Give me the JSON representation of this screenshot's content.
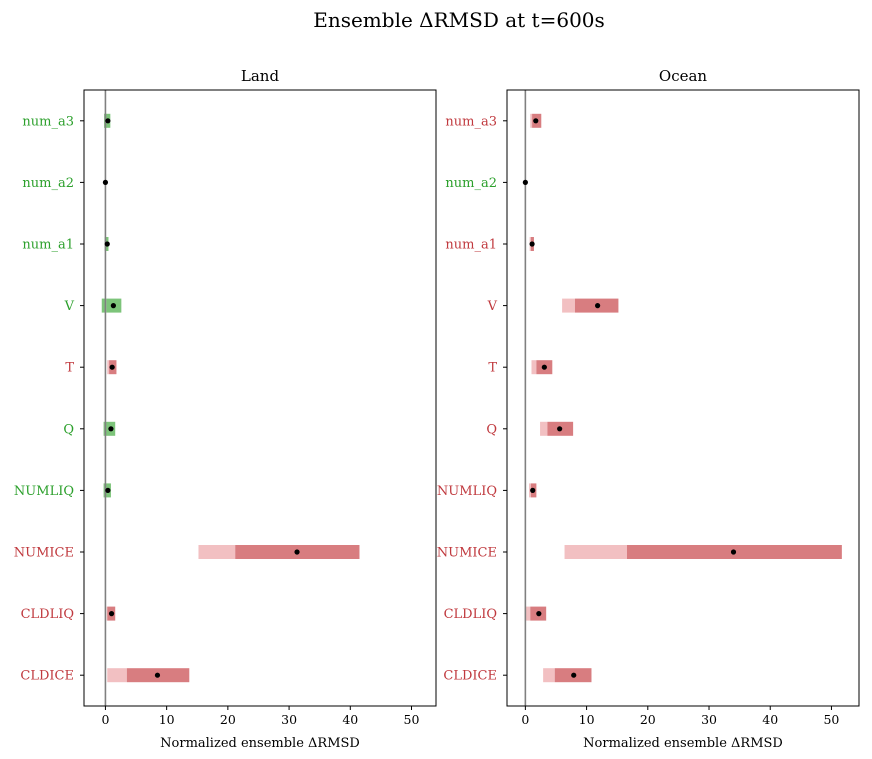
{
  "chart_data": {
    "type": "bar",
    "title": "Ensemble ΔRMSD at t=600s",
    "colors": {
      "green_label": "#2ca02c",
      "red_label": "#c0393e",
      "green_bar": "#7dc47a",
      "red_bar": "#d87d80",
      "red_bar_light": "#f2c0c2",
      "zero_line": "#808080",
      "dot": "#000000"
    },
    "panels": [
      {
        "title": "Land",
        "xlabel": "Normalized ensemble ΔRMSD",
        "xlim": [
          -3.5,
          54
        ],
        "xticks": [
          0,
          10,
          20,
          30,
          40,
          50
        ],
        "categories": [
          "num_a3",
          "num_a2",
          "num_a1",
          "V",
          "T",
          "Q",
          "NUMLIQ",
          "NUMICE",
          "CLDLIQ",
          "CLDICE"
        ],
        "label_colors": [
          "green",
          "green",
          "green",
          "green",
          "red",
          "green",
          "green",
          "red",
          "red",
          "red"
        ],
        "light_range": [
          [
            -0.2,
            0.2
          ],
          [
            0,
            0
          ],
          [
            -0.1,
            0.1
          ],
          [
            -0.6,
            0.2
          ],
          [
            0.3,
            0.6
          ],
          [
            -0.3,
            -0.1
          ],
          [
            -0.3,
            -0.1
          ],
          [
            15.2,
            21.2
          ],
          [
            0.2,
            0.3
          ],
          [
            0.3,
            3.5
          ]
        ],
        "dark_range": [
          [
            -0.2,
            0.8
          ],
          [
            0,
            0
          ],
          [
            -0.1,
            0.5
          ],
          [
            0.2,
            2.6
          ],
          [
            0.6,
            1.8
          ],
          [
            -0.1,
            1.6
          ],
          [
            -0.1,
            0.9
          ],
          [
            21.2,
            41.5
          ],
          [
            0.3,
            1.6
          ],
          [
            3.5,
            13.7
          ]
        ],
        "values": [
          0.4,
          0.0,
          0.3,
          1.3,
          1.1,
          0.9,
          0.4,
          31.3,
          1.0,
          8.5
        ]
      },
      {
        "title": "Ocean",
        "xlabel": "Normalized ensemble ΔRMSD",
        "xlim": [
          -3,
          54.5
        ],
        "xticks": [
          0,
          10,
          20,
          30,
          40,
          50
        ],
        "categories": [
          "num_a3",
          "num_a2",
          "num_a1",
          "V",
          "T",
          "Q",
          "NUMLIQ",
          "NUMICE",
          "CLDLIQ",
          "CLDICE"
        ],
        "label_colors": [
          "red",
          "green",
          "red",
          "red",
          "red",
          "red",
          "red",
          "red",
          "red",
          "red"
        ],
        "light_range": [
          [
            0.8,
            1.1
          ],
          [
            0,
            0
          ],
          [
            0.7,
            0.9
          ],
          [
            6.0,
            8.1
          ],
          [
            1.0,
            1.8
          ],
          [
            2.4,
            3.6
          ],
          [
            0.6,
            0.9
          ],
          [
            6.4,
            16.6
          ],
          [
            -0.1,
            0.8
          ],
          [
            2.9,
            4.8
          ]
        ],
        "dark_range": [
          [
            1.1,
            2.6
          ],
          [
            0,
            0
          ],
          [
            0.9,
            1.4
          ],
          [
            8.1,
            15.2
          ],
          [
            1.8,
            4.4
          ],
          [
            3.6,
            7.8
          ],
          [
            0.9,
            1.8
          ],
          [
            16.6,
            51.7
          ],
          [
            0.8,
            3.4
          ],
          [
            4.8,
            10.8
          ]
        ],
        "values": [
          1.7,
          0.0,
          1.1,
          11.8,
          3.1,
          5.6,
          1.2,
          34.0,
          2.2,
          7.9
        ]
      }
    ]
  }
}
